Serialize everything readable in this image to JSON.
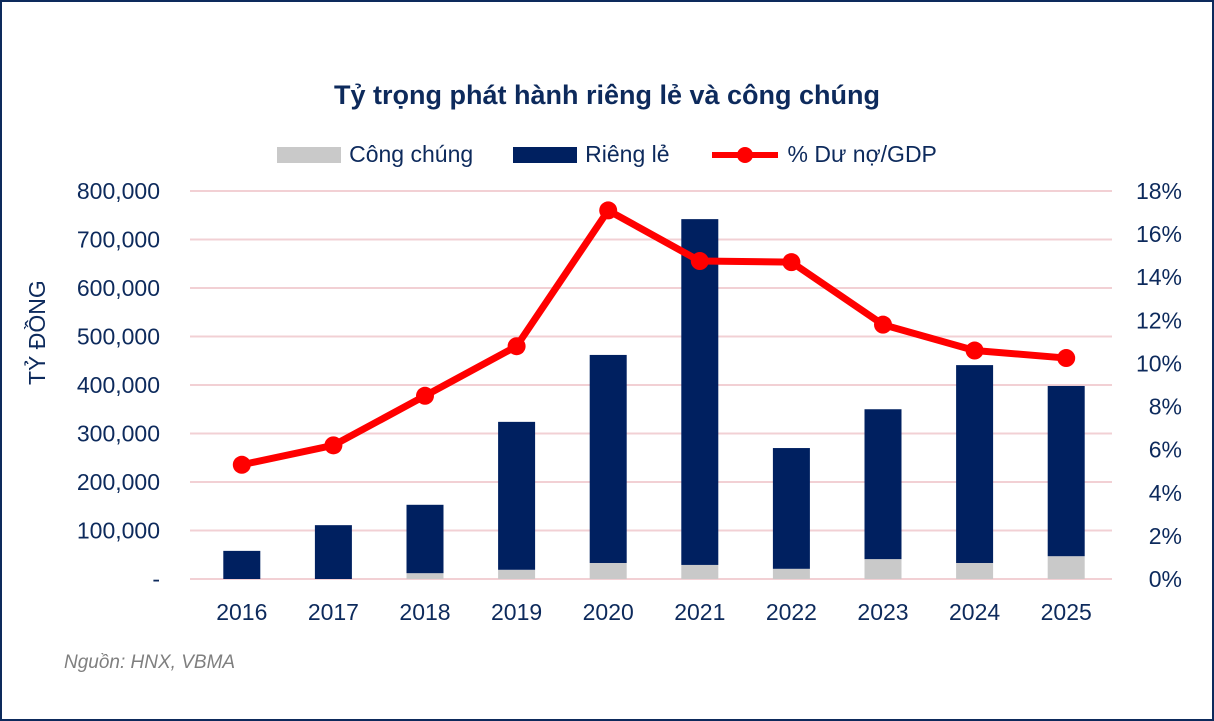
{
  "chart_data": {
    "type": "bar",
    "title": "Tỷ trọng phát hành riêng lẻ và công chúng",
    "categories": [
      "2016",
      "2017",
      "2018",
      "2019",
      "2020",
      "2021",
      "2022",
      "2023",
      "2024",
      "2025"
    ],
    "series": [
      {
        "name": "Công chúng",
        "type": "stacked-bar",
        "axis": "left",
        "color": "#c9c9c9",
        "values": [
          0,
          0,
          12000,
          19000,
          33000,
          29000,
          21000,
          41000,
          33000,
          47000
        ]
      },
      {
        "name": "Riêng lẻ",
        "type": "stacked-bar",
        "axis": "left",
        "color": "#002060",
        "values": [
          58000,
          111000,
          141000,
          305000,
          429000,
          713000,
          249000,
          309000,
          408000,
          351000
        ]
      },
      {
        "name": "% Dư nợ/GDP",
        "type": "line",
        "axis": "right",
        "color": "#ff0000",
        "values": [
          5.3,
          6.2,
          8.5,
          10.8,
          17.1,
          14.75,
          14.7,
          11.8,
          10.6,
          10.25
        ]
      }
    ],
    "ylabel": "TỶ ĐỒNG",
    "ylim": [
      0,
      800000
    ],
    "y_ticks": [
      "-",
      "100,000",
      "200,000",
      "300,000",
      "400,000",
      "500,000",
      "600,000",
      "700,000",
      "800,000"
    ],
    "y2lim": [
      0,
      18
    ],
    "y2_ticks": [
      "0%",
      "2%",
      "4%",
      "6%",
      "8%",
      "10%",
      "12%",
      "14%",
      "16%",
      "18%"
    ],
    "grid": true,
    "legend": "top"
  },
  "source": "Nguồn: HNX, VBMA",
  "colors": {
    "text": "#0d2a5c",
    "grid": "#f2d0d4"
  }
}
